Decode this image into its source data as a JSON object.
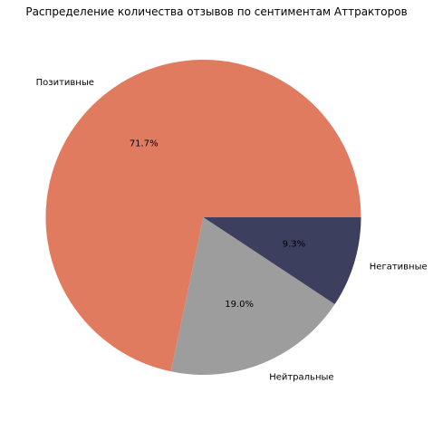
{
  "chart_data": {
    "type": "pie",
    "title": "Распределение количества отзывов по сентиментам Аттракторов",
    "slices": [
      {
        "label": "Позитивные",
        "value": 71.7,
        "pct_label": "71.7%",
        "color": "#e07b5f"
      },
      {
        "label": "Нейтральные",
        "value": 19.0,
        "pct_label": "19.0%",
        "color": "#9d9d9d"
      },
      {
        "label": "Негативные",
        "value": 9.3,
        "pct_label": "9.3%",
        "color": "#3d3f5e"
      }
    ]
  }
}
